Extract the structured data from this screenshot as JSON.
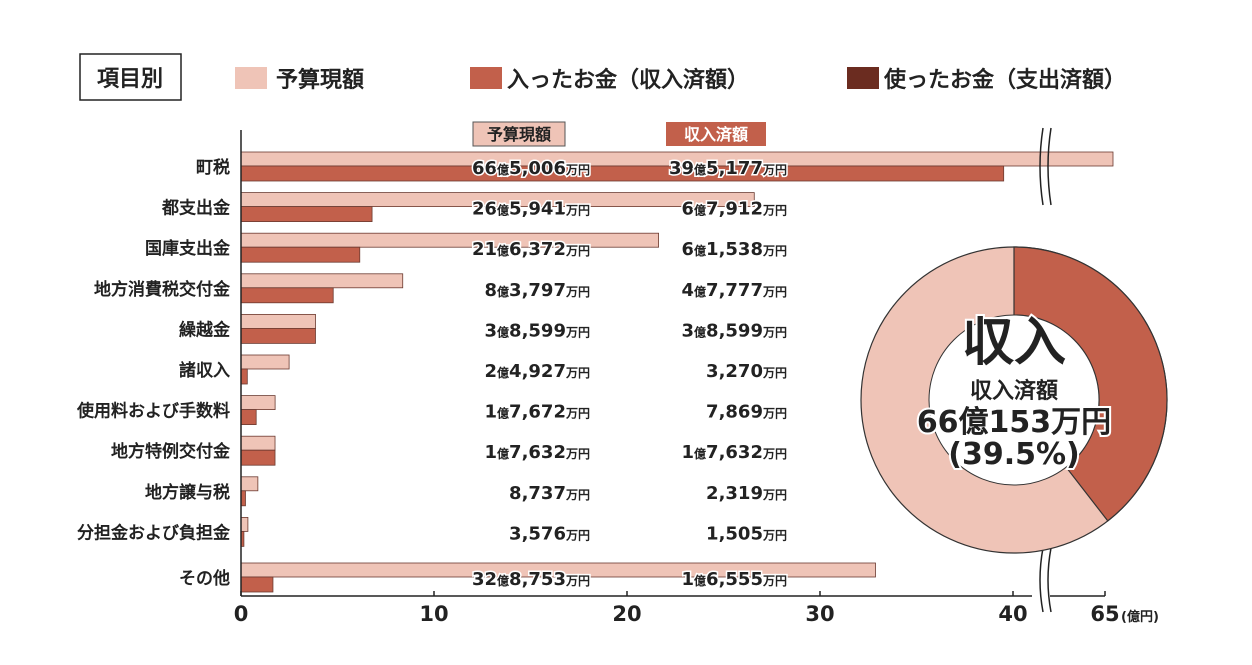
{
  "chart_data": {
    "type": "bar",
    "orientation": "horizontal",
    "title": "項目別",
    "legend": {
      "position": "top",
      "entries": [
        "予算現額",
        "入ったお金（収入済額）",
        "使ったお金（支出済額）"
      ]
    },
    "column_headers": {
      "budget": "予算現額",
      "income": "収入済額"
    },
    "categories": [
      "町税",
      "都支出金",
      "国庫支出金",
      "地方消費税交付金",
      "繰越金",
      "諸収入",
      "使用料および手数料",
      "地方特例交付金",
      "地方譲与税",
      "分担金および負担金",
      "その他"
    ],
    "series": [
      {
        "name": "予算現額",
        "unit": "億円",
        "values": [
          66.5006,
          26.5941,
          21.6372,
          8.3797,
          3.8599,
          2.4927,
          1.7672,
          1.7632,
          0.8737,
          0.3576,
          32.8753
        ],
        "labels": [
          "66億5,006万円",
          "26億5,941万円",
          "21億6,372万円",
          "8億3,797万円",
          "3億8,599万円",
          "2億4,927万円",
          "1億7,672万円",
          "1億7,632万円",
          "8,737万円",
          "3,576万円",
          "32億8,753万円"
        ]
      },
      {
        "name": "収入済額",
        "unit": "億円",
        "values": [
          39.5177,
          6.7912,
          6.1538,
          4.7777,
          3.8599,
          0.327,
          0.7869,
          1.7632,
          0.2319,
          0.1505,
          1.6555
        ],
        "labels": [
          "39億5,177万円",
          "6億7,912万円",
          "6億1,538万円",
          "4億7,777万円",
          "3億8,599万円",
          "3,270万円",
          "7,869万円",
          "1億7,632万円",
          "2,319万円",
          "1,505万円",
          "1億6,555万円"
        ]
      }
    ],
    "xaxis": {
      "ticks": [
        "0",
        "10",
        "20",
        "30",
        "40",
        "65"
      ],
      "unit": "(億円)",
      "range": [
        0,
        65
      ],
      "break_between": [
        40,
        65
      ]
    },
    "grid": false,
    "colors": {
      "budget": "#efc4b7",
      "income": "#c2604b",
      "expense": "#6b2c20"
    },
    "donut": {
      "title": "収入",
      "label": "収入済額",
      "amount": "66億153万円",
      "percent_label": "(39.5%)",
      "percent": 39.5
    }
  }
}
